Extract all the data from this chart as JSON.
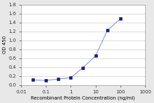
{
  "x": [
    0.03,
    0.1,
    0.3,
    1.0,
    3.0,
    10.0,
    30.0,
    100.0
  ],
  "y": [
    0.11,
    0.1,
    0.13,
    0.16,
    0.38,
    0.65,
    1.22,
    1.48
  ],
  "line_color": "#8899CC",
  "marker_color": "#1a1a8c",
  "marker": "s",
  "marker_size": 2.5,
  "line_style": "-",
  "line_width": 0.8,
  "xlabel": "Recombinant Protein Concentration (ng/ml)",
  "ylabel": "OD 450",
  "xlim": [
    0.01,
    1000
  ],
  "ylim": [
    0,
    1.8
  ],
  "yticks": [
    0,
    0.2,
    0.4,
    0.6,
    0.8,
    1.0,
    1.2,
    1.4,
    1.6,
    1.8
  ],
  "xticks": [
    0.01,
    0.1,
    1,
    10,
    100,
    1000
  ],
  "xtick_labels": [
    "0.01",
    "0.1",
    "1",
    "10",
    "100",
    "1000"
  ],
  "plot_bg_color": "#ffffff",
  "fig_bg_color": "#e8e8e8",
  "grid_color": "#cccccc",
  "xlabel_fontsize": 5.0,
  "ylabel_fontsize": 5.0,
  "tick_fontsize": 5.0
}
